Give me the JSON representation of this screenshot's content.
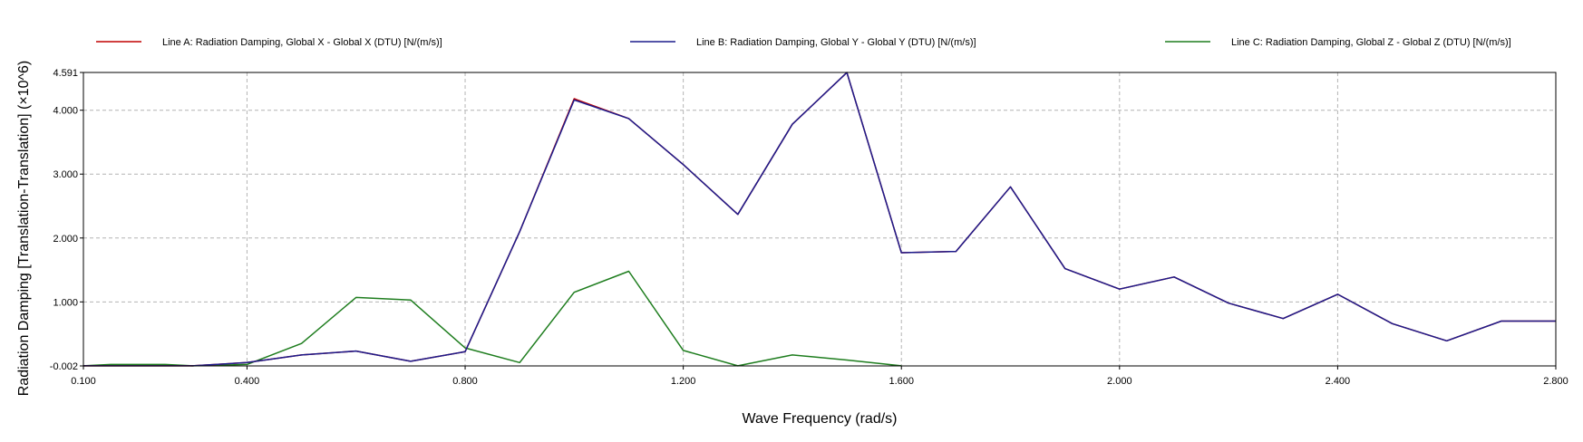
{
  "chart_data": {
    "type": "line",
    "xlabel": "Wave Frequency (rad/s)",
    "ylabel": "Radiation Damping [Translation-Translation] (×10^6)",
    "xlim": [
      0.1,
      2.8
    ],
    "ylim": [
      -0.002,
      4.591
    ],
    "x_ticks": [
      "0.100",
      "0.400",
      "0.800",
      "1.200",
      "1.600",
      "2.000",
      "2.400",
      "2.800"
    ],
    "x_tick_values": [
      0.1,
      0.4,
      0.8,
      1.2,
      1.6,
      2.0,
      2.4,
      2.8
    ],
    "y_ticks": [
      "-0.002",
      "1.000",
      "2.000",
      "3.000",
      "4.000",
      "4.591"
    ],
    "y_tick_values": [
      -0.002,
      1.0,
      2.0,
      3.0,
      4.0,
      4.591
    ],
    "grid": true,
    "legend_position": "top",
    "series": [
      {
        "name": "Line A: Radiation Damping, Global X - Global X (DTU) [N/(m/s)]",
        "color": "#c00000",
        "x": [
          0.1,
          0.2,
          0.3,
          0.4,
          0.5,
          0.6,
          0.7,
          0.8,
          0.9,
          1.0,
          1.1,
          1.2,
          1.3,
          1.4,
          1.5,
          1.6,
          1.7,
          1.8,
          1.9,
          2.0,
          2.1,
          2.2,
          2.3,
          2.4,
          2.5,
          2.6,
          2.7,
          2.8
        ],
        "values": [
          0.0,
          0.0,
          0.0,
          0.05,
          0.17,
          0.23,
          0.07,
          0.22,
          2.1,
          4.18,
          3.87,
          3.15,
          2.37,
          3.78,
          4.59,
          1.77,
          1.79,
          2.8,
          1.52,
          1.2,
          1.39,
          0.98,
          0.74,
          1.12,
          0.66,
          0.39,
          0.7,
          0.7
        ]
      },
      {
        "name": "Line B: Radiation Damping, Global Y - Global Y (DTU) [N/(m/s)]",
        "color": "#1c1c8c",
        "x": [
          0.1,
          0.2,
          0.3,
          0.4,
          0.5,
          0.6,
          0.7,
          0.8,
          0.9,
          1.0,
          1.1,
          1.2,
          1.3,
          1.4,
          1.5,
          1.6,
          1.7,
          1.8,
          1.9,
          2.0,
          2.1,
          2.2,
          2.3,
          2.4,
          2.5,
          2.6,
          2.7,
          2.8
        ],
        "values": [
          0.0,
          0.0,
          0.0,
          0.05,
          0.17,
          0.23,
          0.07,
          0.22,
          2.1,
          4.16,
          3.87,
          3.15,
          2.37,
          3.78,
          4.59,
          1.77,
          1.79,
          2.8,
          1.52,
          1.2,
          1.39,
          0.98,
          0.74,
          1.12,
          0.66,
          0.39,
          0.7,
          0.7
        ]
      },
      {
        "name": "Line C: Radiation Damping, Global Z - Global Z (DTU) [N/(m/s)]",
        "color": "#1e7d1e",
        "x": [
          0.1,
          0.15,
          0.25,
          0.3,
          0.4,
          0.5,
          0.6,
          0.7,
          0.8,
          0.9,
          1.0,
          1.1,
          1.2,
          1.3,
          1.4,
          1.5,
          1.6
        ],
        "values": [
          0.0,
          0.02,
          0.02,
          0.0,
          0.02,
          0.35,
          1.07,
          1.03,
          0.28,
          0.05,
          1.15,
          1.48,
          0.24,
          0.0,
          0.17,
          0.09,
          0.0
        ]
      }
    ]
  }
}
